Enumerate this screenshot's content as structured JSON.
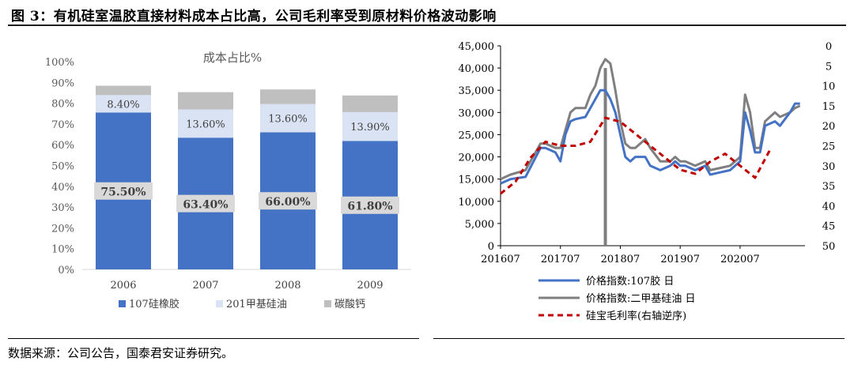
{
  "figure": {
    "title": "图 3：有机硅室温胶直接材料成本占比高，公司毛利率受到原材料价格波动影响",
    "source": "数据来源：公司公告，国泰君安证券研究。"
  },
  "chart_data": [
    {
      "type": "bar",
      "stacked": true,
      "title": "成本占比%",
      "categories": [
        "2006",
        "2007",
        "2008",
        "2009"
      ],
      "ylim": [
        0,
        100
      ],
      "yticks": [
        "0%",
        "10%",
        "20%",
        "30%",
        "40%",
        "50%",
        "60%",
        "70%",
        "80%",
        "90%",
        "100%"
      ],
      "series": [
        {
          "name": "107硅橡胶",
          "values": [
            75.5,
            63.4,
            66.0,
            61.8
          ],
          "labels": [
            "75.50%",
            "63.40%",
            "66.00%",
            "61.80%"
          ],
          "color": "#4472c4"
        },
        {
          "name": "201甲基硅油",
          "values": [
            8.4,
            13.6,
            13.6,
            13.9
          ],
          "labels": [
            "8.40%",
            "13.60%",
            "13.60%",
            "13.90%"
          ],
          "color": "#dae3f3"
        },
        {
          "name": "碳酸钙",
          "values": [
            4.5,
            8.3,
            7.0,
            8.0
          ],
          "color": "#bfbfbf"
        }
      ],
      "legend": "bottom"
    },
    {
      "type": "line",
      "x_ticks": [
        "201607",
        "201707",
        "201807",
        "201907",
        "202007"
      ],
      "y_left": {
        "range": [
          0,
          45000
        ],
        "ticks": [
          "0",
          "5,000",
          "10,000",
          "15,000",
          "20,000",
          "25,000",
          "30,000",
          "35,000",
          "40,000",
          "45,000"
        ]
      },
      "y_right": {
        "range": [
          0,
          50
        ],
        "inverted": true,
        "ticks": [
          "0",
          "5",
          "10",
          "15",
          "20",
          "25",
          "30",
          "35",
          "40",
          "45",
          "50"
        ]
      },
      "vline_x": "201804",
      "series": [
        {
          "name": "价格指数:107胶 日",
          "color": "#4472c4",
          "axis": "left",
          "x": [
            "201607",
            "201609",
            "201612",
            "201703",
            "201704",
            "201706",
            "201707",
            "201708",
            "201709",
            "201710",
            "201712",
            "201801",
            "201802",
            "201803",
            "201804",
            "201805",
            "201806",
            "201807",
            "201808",
            "201809",
            "201810",
            "201811",
            "201812",
            "201901",
            "201903",
            "201905",
            "201906",
            "201907",
            "201908",
            "201910",
            "201912",
            "202001",
            "202003",
            "202005",
            "202006",
            "202007",
            "202008",
            "202009",
            "202010",
            "202011",
            "202012",
            "202102",
            "202103",
            "202105",
            "202106",
            "202107"
          ],
          "y": [
            14000,
            15000,
            15500,
            22000,
            22000,
            21000,
            19000,
            25000,
            28000,
            28500,
            29000,
            31000,
            33000,
            35000,
            35000,
            33000,
            30000,
            25000,
            20000,
            19000,
            20000,
            20000,
            20000,
            18000,
            17000,
            18000,
            19000,
            18000,
            18000,
            17000,
            18000,
            16000,
            16500,
            17000,
            18000,
            19000,
            30000,
            26000,
            21000,
            21000,
            27000,
            28000,
            27000,
            30000,
            32000,
            32000
          ]
        },
        {
          "name": "价格指数:二甲基硅油 日",
          "color": "#7f7f7f",
          "axis": "left",
          "x": [
            "201607",
            "201609",
            "201612",
            "201703",
            "201704",
            "201706",
            "201707",
            "201708",
            "201709",
            "201710",
            "201712",
            "201801",
            "201802",
            "201803",
            "201804",
            "201805",
            "201806",
            "201807",
            "201808",
            "201809",
            "201810",
            "201811",
            "201812",
            "201901",
            "201903",
            "201905",
            "201906",
            "201907",
            "201908",
            "201910",
            "201912",
            "202001",
            "202003",
            "202005",
            "202006",
            "202007",
            "202008",
            "202009",
            "202010",
            "202011",
            "202012",
            "202102",
            "202103",
            "202105",
            "202106",
            "202107"
          ],
          "y": [
            15000,
            16000,
            17000,
            23000,
            23000,
            22000,
            22000,
            26000,
            30000,
            31000,
            31000,
            34000,
            36000,
            40000,
            42000,
            41000,
            35000,
            28000,
            23000,
            22000,
            22000,
            23000,
            24000,
            22000,
            19000,
            19000,
            20000,
            19000,
            19000,
            18000,
            19000,
            17000,
            17500,
            18000,
            19000,
            20000,
            34000,
            30000,
            22000,
            22000,
            28000,
            30000,
            29000,
            30000,
            31000,
            31500
          ]
        },
        {
          "name": "硅宝毛利率(右轴逆序)",
          "color": "#c00000",
          "axis": "right",
          "dash": true,
          "x": [
            "201607",
            "201610",
            "201701",
            "201704",
            "201707",
            "201710",
            "201801",
            "201804",
            "201807",
            "201810",
            "201901",
            "201904",
            "201907",
            "201910",
            "202001",
            "202004",
            "202007",
            "202010",
            "202101"
          ],
          "y": [
            37,
            34,
            28,
            24,
            25,
            25,
            24,
            18,
            19,
            22,
            25,
            28,
            31,
            32,
            29,
            27,
            30,
            33,
            26
          ]
        }
      ],
      "legend": "bottom-left"
    }
  ]
}
